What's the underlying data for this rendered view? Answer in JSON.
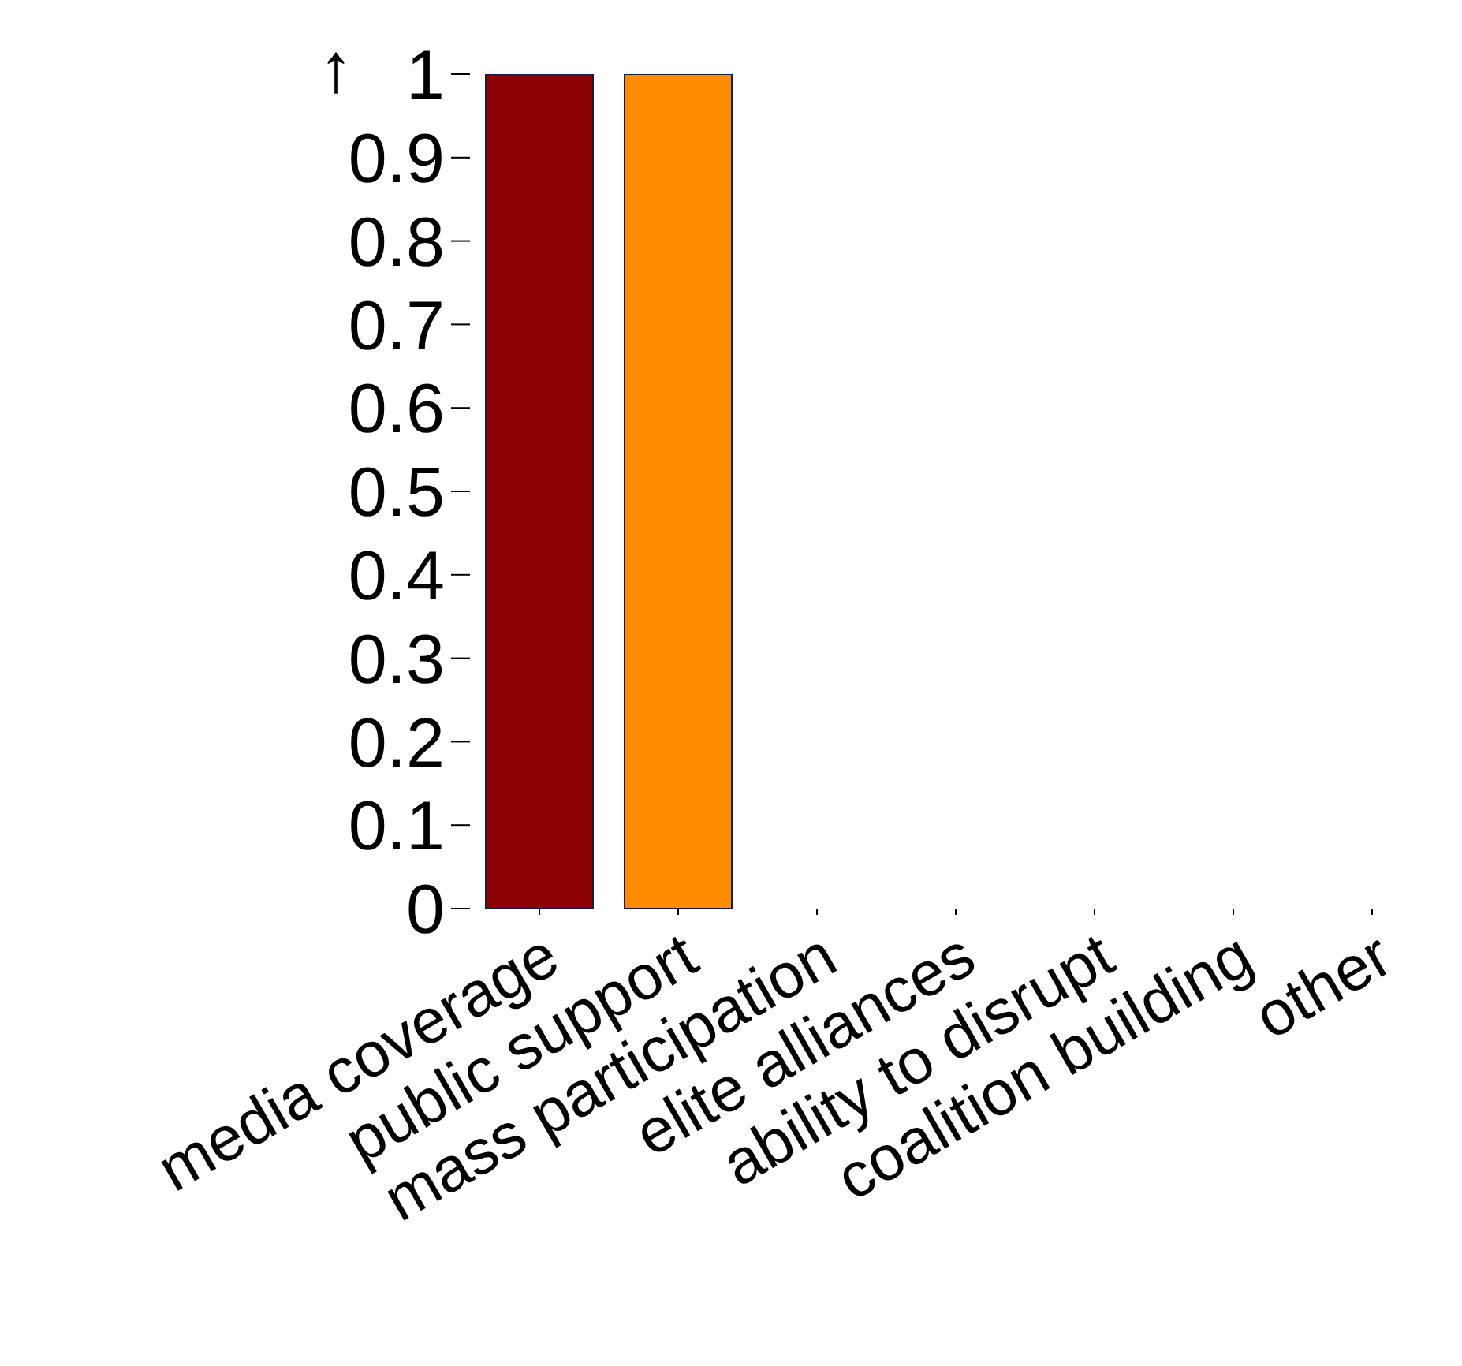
{
  "chart_data": {
    "type": "bar",
    "ylabel": "↑",
    "categories": [
      "media coverage",
      "public support",
      "mass participation",
      "elite alliances",
      "ability to disrupt",
      "coalition building",
      "other"
    ],
    "values": [
      1,
      1,
      0,
      0,
      0,
      0,
      0
    ],
    "colors": [
      "#8b0000",
      "#ff8c00",
      "#1f77b4",
      "#2ca02c",
      "#9467bd",
      "#8c564b",
      "#7f7f7f"
    ],
    "ylim": [
      0,
      1
    ],
    "yticks": [
      0,
      0.1,
      0.2,
      0.3,
      0.4,
      0.5,
      0.6,
      0.7,
      0.8,
      0.9,
      1
    ],
    "grid": false,
    "legend": false
  }
}
